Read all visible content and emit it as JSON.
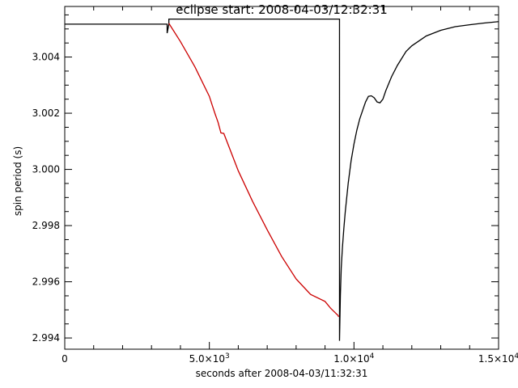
{
  "chart_data": {
    "type": "line",
    "title": "eclipse start: 2008-04-03/12:32:31",
    "xlabel": "seconds after 2008-04-03/11:32:31",
    "ylabel": "spin period (s)",
    "xlim": [
      0,
      15000
    ],
    "ylim": [
      2.9936,
      3.0058
    ],
    "x_ticks": [
      {
        "value": 0,
        "label": "0",
        "sup": ""
      },
      {
        "value": 5000,
        "label": "5.0×10",
        "sup": "3"
      },
      {
        "value": 10000,
        "label": "1.0×10",
        "sup": "4"
      },
      {
        "value": 15000,
        "label": "1.5×10",
        "sup": "4"
      }
    ],
    "y_ticks": [
      {
        "value": 2.994,
        "label": "2.994"
      },
      {
        "value": 2.996,
        "label": "2.996"
      },
      {
        "value": 2.998,
        "label": "2.998"
      },
      {
        "value": 3.0,
        "label": "3.000"
      },
      {
        "value": 3.002,
        "label": "3.002"
      },
      {
        "value": 3.004,
        "label": "3.004"
      }
    ],
    "grid": false,
    "series": [
      {
        "color": "#000000",
        "x": [
          0,
          3540,
          3540,
          3600,
          3600,
          9500,
          9500,
          9530,
          9560,
          9600,
          9650,
          9700,
          9800,
          9900,
          10000,
          10100,
          10200,
          10300,
          10400,
          10500,
          10600,
          10700,
          10800,
          10900,
          11000,
          11100,
          11300,
          11500,
          11800,
          12000,
          12500,
          13000,
          13500,
          14000,
          14500,
          15000
        ],
        "y": [
          3.00517,
          3.00517,
          3.00485,
          3.00517,
          3.00535,
          3.00535,
          2.9939,
          2.9955,
          2.9965,
          2.9972,
          2.9979,
          2.9985,
          2.9995,
          3.0003,
          3.0009,
          3.0014,
          3.0018,
          3.0021,
          3.0024,
          3.0026,
          3.00262,
          3.00255,
          3.0024,
          3.00237,
          3.0025,
          3.0028,
          3.0033,
          3.0037,
          3.0042,
          3.0044,
          3.00475,
          3.00495,
          3.00508,
          3.00515,
          3.00521,
          3.00526
        ]
      },
      {
        "color": "#cc0000",
        "x": [
          3600,
          4000,
          4500,
          5000,
          5100,
          5200,
          5300,
          5400,
          5500,
          6000,
          6500,
          7000,
          7500,
          8000,
          8500,
          9000,
          9200,
          9350,
          9450,
          9470
        ],
        "y": [
          3.0052,
          3.00455,
          3.00365,
          3.0026,
          3.00228,
          3.00197,
          3.00168,
          3.0013,
          3.00128,
          2.99995,
          2.99885,
          2.99785,
          2.9969,
          2.9961,
          2.99555,
          2.9953,
          2.99505,
          2.9949,
          2.9948,
          2.99475
        ]
      }
    ]
  }
}
